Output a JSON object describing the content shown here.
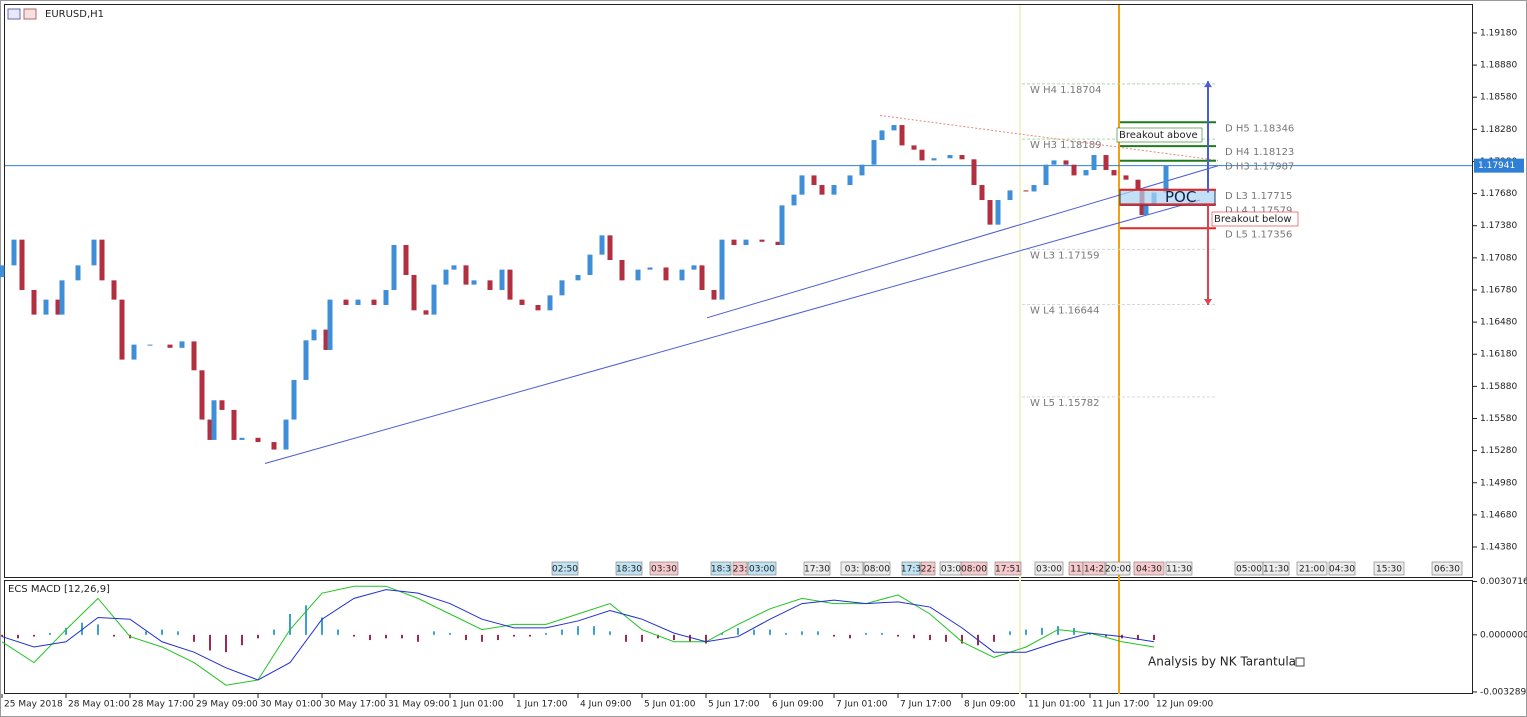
{
  "window_title": "EURUSD,H1",
  "chart_data": [
    {
      "type": "candlestick",
      "x": [
        0,
        3,
        5,
        8,
        11,
        14,
        15,
        19,
        23,
        25,
        28,
        30,
        33,
        37,
        42,
        45,
        48,
        50,
        52,
        53,
        55,
        58,
        60,
        64,
        68,
        71,
        73,
        76,
        78,
        81,
        82,
        86,
        89,
        93,
        96,
        98,
        101,
        103,
        106,
        108,
        111,
        113,
        116,
        118,
        122,
        125,
        127,
        130,
        134,
        137,
        140,
        144,
        147,
        150,
        152,
        155,
        159,
        162,
        166,
        170,
        173,
        175,
        178,
        180,
        183,
        186,
        190,
        194,
        195,
        198,
        200,
        203,
        205,
        208,
        212,
        215,
        218,
        220,
        223,
        225,
        228,
        230,
        233,
        237,
        240,
        243,
        245,
        247,
        249,
        252,
        256,
        258,
        261,
        263,
        266,
        268,
        271,
        273,
        276,
        278,
        281,
        284,
        285,
        286,
        288,
        291
      ],
      "open": [
        1.169,
        1.1701,
        1.1725,
        1.1678,
        1.1655,
        1.1669,
        1.1655,
        1.1687,
        1.1701,
        1.1725,
        1.1687,
        1.1669,
        1.1613,
        1.1627,
        1.1627,
        1.1624,
        1.163,
        1.1603,
        1.1557,
        1.1538,
        1.1575,
        1.1566,
        1.1538,
        1.154,
        1.1536,
        1.1529,
        1.1557,
        1.1594,
        1.1631,
        1.1641,
        1.1622,
        1.1669,
        1.1664,
        1.1669,
        1.1664,
        1.1678,
        1.172,
        1.1692,
        1.1659,
        1.1655,
        1.1683,
        1.1697,
        1.1701,
        1.1683,
        1.1687,
        1.1678,
        1.1697,
        1.1669,
        1.1664,
        1.1659,
        1.1673,
        1.1687,
        1.1692,
        1.1711,
        1.1729,
        1.1706,
        1.1687,
        1.1697,
        1.1699,
        1.1687,
        1.1697,
        1.1701,
        1.1678,
        1.1669,
        1.1725,
        1.172,
        1.1725,
        1.1723,
        1.172,
        1.1757,
        1.1767,
        1.1785,
        1.1776,
        1.1767,
        1.1776,
        1.1785,
        1.1795,
        1.1818,
        1.1827,
        1.1832,
        1.1813,
        1.1809,
        1.1799,
        1.1801,
        1.1804,
        1.18,
        1.1776,
        1.1762,
        1.1739,
        1.1762,
        1.1771,
        1.177,
        1.1776,
        1.1795,
        1.1799,
        1.1795,
        1.1785,
        1.179,
        1.1804,
        1.179,
        1.1785,
        1.1781,
        1.1771,
        1.1748,
        1.1757,
        1.1769
      ],
      "close": [
        1.1701,
        1.1725,
        1.1678,
        1.1655,
        1.1669,
        1.1655,
        1.1687,
        1.1701,
        1.1725,
        1.1687,
        1.1669,
        1.1613,
        1.1627,
        1.1627,
        1.1624,
        1.163,
        1.1603,
        1.1557,
        1.1538,
        1.1575,
        1.1566,
        1.1538,
        1.154,
        1.1536,
        1.1529,
        1.1557,
        1.1594,
        1.1631,
        1.1641,
        1.1622,
        1.1669,
        1.1664,
        1.1669,
        1.1664,
        1.1678,
        1.172,
        1.1692,
        1.1659,
        1.1655,
        1.1683,
        1.1697,
        1.1701,
        1.1683,
        1.1687,
        1.1678,
        1.1697,
        1.1669,
        1.1664,
        1.1659,
        1.1673,
        1.1687,
        1.1692,
        1.1711,
        1.1729,
        1.1706,
        1.1687,
        1.1697,
        1.1699,
        1.1687,
        1.1697,
        1.1701,
        1.1678,
        1.1669,
        1.1725,
        1.172,
        1.1725,
        1.1723,
        1.172,
        1.1757,
        1.1767,
        1.1785,
        1.1776,
        1.1767,
        1.1776,
        1.1785,
        1.1795,
        1.1818,
        1.1827,
        1.1832,
        1.1813,
        1.1809,
        1.1799,
        1.1801,
        1.1804,
        1.18,
        1.1776,
        1.1762,
        1.1739,
        1.1762,
        1.1771,
        1.177,
        1.1776,
        1.1795,
        1.1799,
        1.1795,
        1.1785,
        1.179,
        1.1804,
        1.179,
        1.1785,
        1.1781,
        1.1771,
        1.1748,
        1.1757,
        1.1769,
        1.1794
      ],
      "up_color": "#3f8ed8",
      "down_color": "#b22f3f",
      "xlim": [
        0.75,
        367.5
      ],
      "ylim": [
        1.141,
        1.19441
      ],
      "yticks": [
        {
          "value": 1.1918,
          "label": "1.19180"
        },
        {
          "value": 1.1888,
          "label": "1.18880"
        },
        {
          "value": 1.1858,
          "label": "1.18580"
        },
        {
          "value": 1.1828,
          "label": "1.18280"
        },
        {
          "value": 1.1798,
          "label": "1.17980"
        },
        {
          "value": 1.1768,
          "label": "1.17680"
        },
        {
          "value": 1.1738,
          "label": "1.17380"
        },
        {
          "value": 1.1708,
          "label": "1.17080"
        },
        {
          "value": 1.1678,
          "label": "1.16780"
        },
        {
          "value": 1.1648,
          "label": "1.16480"
        },
        {
          "value": 1.1618,
          "label": "1.16180"
        },
        {
          "value": 1.1588,
          "label": "1.15880"
        },
        {
          "value": 1.1558,
          "label": "1.15580"
        },
        {
          "value": 1.1528,
          "label": "1.15280"
        },
        {
          "value": 1.1498,
          "label": "1.14980"
        },
        {
          "value": 1.1468,
          "label": "1.14680"
        },
        {
          "value": 1.1438,
          "label": "1.14380"
        }
      ],
      "xticks": [
        {
          "value": 0,
          "label": "25 May 2018"
        },
        {
          "value": 16,
          "label": "28 May 01:00"
        },
        {
          "value": 32,
          "label": "28 May 17:00"
        },
        {
          "value": 48,
          "label": "29 May 09:00"
        },
        {
          "value": 64,
          "label": "30 May 01:00"
        },
        {
          "value": 80,
          "label": "30 May 17:00"
        },
        {
          "value": 96,
          "label": "31 May 09:00"
        },
        {
          "value": 112,
          "label": "1 Jun 01:00"
        },
        {
          "value": 128,
          "label": "1 Jun 17:00"
        },
        {
          "value": 144,
          "label": "4 Jun 09:00"
        },
        {
          "value": 160,
          "label": "5 Jun 01:00"
        },
        {
          "value": 176,
          "label": "5 Jun 17:00"
        },
        {
          "value": 192,
          "label": "6 Jun 09:00"
        },
        {
          "value": 208,
          "label": "7 Jun 01:00"
        },
        {
          "value": 224,
          "label": "7 Jun 17:00"
        },
        {
          "value": 240,
          "label": "8 Jun 09:00"
        },
        {
          "value": 256,
          "label": "11 Jun 01:00"
        },
        {
          "value": 272,
          "label": "11 Jun 17:00"
        },
        {
          "value": 288,
          "label": "12 Jun 09:00"
        }
      ],
      "current_price": 1.17941,
      "current_price_color": "#2f7fd6",
      "weekly_levels": [
        {
          "label": "W H4 1.18704",
          "value": 1.18704,
          "color": "#a8dca8"
        },
        {
          "label": "W H3 1.18189",
          "value": 1.18189,
          "color": "#a8dca8"
        },
        {
          "label": "W L3 1.17159",
          "value": 1.17159,
          "color": "#d8d8d8"
        },
        {
          "label": "W L4 1.16644",
          "value": 1.16644,
          "color": "#d8d8d8"
        },
        {
          "label": "W L5 1.15782",
          "value": 1.15782,
          "color": "#d8d8d8"
        }
      ],
      "daily_levels": [
        {
          "label": "D H5 1.18346",
          "value": 1.18346,
          "color": "#1e7a1e"
        },
        {
          "label": "D H4 1.18123",
          "value": 1.18123,
          "color": "#1e7a1e"
        },
        {
          "label": "D H3 1.17987",
          "value": 1.17987,
          "color": "#1e7a1e"
        },
        {
          "label": "D L3 1.17715",
          "value": 1.17715,
          "color": "#e02828"
        },
        {
          "label": "D L4 1.17579",
          "value": 1.17579,
          "color": "#e02828"
        },
        {
          "label": "D L5 1.17356",
          "value": 1.17356,
          "color": "#e02828"
        }
      ],
      "trendlines": [
        {
          "x": [
            65.75,
            299.5
          ],
          "y": [
            1.1516,
            1.1762
          ],
          "color": "#4a5bd6"
        },
        {
          "x": [
            176.25,
            304
          ],
          "y": [
            1.1652,
            1.1794
          ],
          "color": "#4a5bd6"
        },
        {
          "x": [
            219.5,
            304
          ],
          "y": [
            1.1841,
            1.1799
          ],
          "color": "#f08080"
        }
      ],
      "vlines": [
        {
          "x": 254.5,
          "color": "#f2f2c8"
        },
        {
          "x": 279.25,
          "color": "#f0a010"
        }
      ],
      "arrows": [
        {
          "x": 301.5,
          "y": [
            1.1769,
            1.1873
          ],
          "color": "#4a5bd6"
        },
        {
          "x": 301.5,
          "y": [
            1.1757,
            1.1664
          ],
          "color": "#e04050"
        }
      ],
      "zone": {
        "label": "POC",
        "y": [
          1.1757,
          1.1772
        ]
      },
      "annotations": [
        "Breakout above",
        "Breakout below"
      ],
      "sessions": [
        {
          "label": "02:50",
          "color": "#bfe3f2"
        },
        {
          "label": "18:30",
          "color": "#bfe3f2"
        },
        {
          "label": "03:30",
          "color": "#f6c9cc"
        },
        {
          "label": "18:3",
          "color": "#bfe3f2"
        },
        {
          "label": "23:",
          "color": "#f6c9cc"
        },
        {
          "label": "03:00",
          "color": "#bfe3f2"
        },
        {
          "label": "17:30",
          "color": "#ececec"
        },
        {
          "label": "03:",
          "color": "#ececec"
        },
        {
          "label": "08:00",
          "color": "#ececec"
        },
        {
          "label": "17:3",
          "color": "#bfe3f2"
        },
        {
          "label": "22:",
          "color": "#f6c9cc"
        },
        {
          "label": "03:0",
          "color": "#ececec"
        },
        {
          "label": "08:00",
          "color": "#f6c9cc"
        },
        {
          "label": "17:51",
          "color": "#f6c9cc"
        },
        {
          "label": "03:00",
          "color": "#ececec"
        },
        {
          "label": "11",
          "color": "#f6c9cc"
        },
        {
          "label": "14:2",
          "color": "#f6c9cc"
        },
        {
          "label": "20:00",
          "color": "#ececec"
        },
        {
          "label": "04:30",
          "color": "#f6c9cc"
        },
        {
          "label": "11:30",
          "color": "#ececec"
        },
        {
          "label": "05:00",
          "color": "#ececec"
        },
        {
          "label": "11:30",
          "color": "#ececec"
        },
        {
          "label": "21:00",
          "color": "#ececec"
        },
        {
          "label": "04:30",
          "color": "#ececec"
        },
        {
          "label": "15:30",
          "color": "#ececec"
        },
        {
          "label": "06:30",
          "color": "#ececec"
        }
      ]
    },
    {
      "type": "macd",
      "title": "ECS MACD [12,26,9]",
      "hist_x": [
        0,
        4,
        8,
        12,
        16,
        20,
        24,
        28,
        32,
        36,
        40,
        44,
        48,
        52,
        56,
        60,
        64,
        68,
        72,
        76,
        80,
        84,
        88,
        92,
        96,
        100,
        104,
        108,
        112,
        116,
        120,
        124,
        128,
        132,
        136,
        140,
        144,
        148,
        152,
        156,
        160,
        164,
        168,
        172,
        176,
        180,
        184,
        188,
        192,
        196,
        200,
        204,
        208,
        212,
        216,
        220,
        224,
        228,
        232,
        236,
        240,
        244,
        248,
        252,
        256,
        260,
        264,
        268,
        272,
        276,
        280,
        284,
        288
      ],
      "histogram": [
        -0.0001,
        -0.0002,
        -0.0001,
        0.0001,
        0.0004,
        0.0007,
        0.0006,
        -0.0001,
        -0.0002,
        0.0002,
        0.0003,
        0.0002,
        -0.0004,
        -0.0009,
        -0.001,
        -0.0006,
        -0.0002,
        0.0003,
        0.0012,
        0.0017,
        0.001,
        0.0003,
        -0.0001,
        -0.0003,
        -0.0002,
        -0.0002,
        -0.0004,
        0.0002,
        0.0001,
        -0.0003,
        -0.0004,
        -0.0003,
        -0.0001,
        -0.0001,
        0.0001,
        0.0003,
        0.0005,
        0.0005,
        0.0002,
        -0.0004,
        -0.0004,
        -0.0002,
        -0.0003,
        -0.0004,
        -0.0005,
        0.0001,
        0.0004,
        0.0003,
        0.0003,
        0.0001,
        0.0002,
        0.0002,
        -0.0001,
        -0.0002,
        0.0001,
        0.0001,
        -0.0001,
        -0.0002,
        -0.0003,
        -0.0004,
        -0.0005,
        -0.0006,
        -0.0004,
        0.0002,
        0.0003,
        0.0004,
        0.0005,
        0.0004,
        0.0001,
        -0.0001,
        -0.0002,
        -0.0003,
        -0.0003
      ],
      "hist_up_color": "#3aa0d8",
      "hist_down_color": "#a0284a",
      "x": [
        0,
        8,
        16,
        24,
        32,
        40,
        48,
        56,
        64,
        72,
        80,
        88,
        96,
        104,
        112,
        120,
        128,
        136,
        144,
        152,
        160,
        168,
        176,
        184,
        192,
        200,
        208,
        216,
        224,
        232,
        240,
        248,
        256,
        264,
        272,
        280,
        288
      ],
      "series": [
        {
          "color": "#22c422",
          "values": [
            -0.0004,
            -0.0016,
            0.0003,
            0.0021,
            -0.0001,
            -0.0007,
            -0.0016,
            -0.0029,
            -0.0026,
            0.0003,
            0.0024,
            0.0028,
            0.0028,
            0.0021,
            0.0012,
            0.0003,
            0.0006,
            0.0006,
            0.0012,
            0.0018,
            0.0003,
            -0.0004,
            -0.0004,
            0.0006,
            0.0015,
            0.0021,
            0.0018,
            0.0018,
            0.0023,
            0.0012,
            -0.0004,
            -0.0013,
            -0.0007,
            0.0003,
            0.0001,
            -0.0004,
            -0.0007
          ]
        },
        {
          "color": "#2030d0",
          "values": [
            -0.0001,
            -0.0007,
            -0.0004,
            0.001,
            0.0009,
            -0.0004,
            -0.001,
            -0.0019,
            -0.0026,
            -0.0016,
            0.0009,
            0.0021,
            0.0026,
            0.0024,
            0.0018,
            0.0009,
            0.0004,
            0.0004,
            0.0008,
            0.0014,
            0.0009,
            0.0001,
            -0.0004,
            -0.0001,
            0.0009,
            0.0018,
            0.002,
            0.0018,
            0.0019,
            0.0016,
            0.0004,
            -0.001,
            -0.001,
            -0.0004,
            0.0001,
            -0.0001,
            -0.0004
          ]
        }
      ],
      "xlim": [
        0.75,
        367.5
      ],
      "ylim": [
        -0.00335,
        0.0031
      ],
      "yticks": [
        0.0030716,
        {
          "value": 0,
          "label": "0.0000000"
        },
        -0.0032893
      ],
      "footer_text": "Analysis by NK Tarantula"
    }
  ]
}
